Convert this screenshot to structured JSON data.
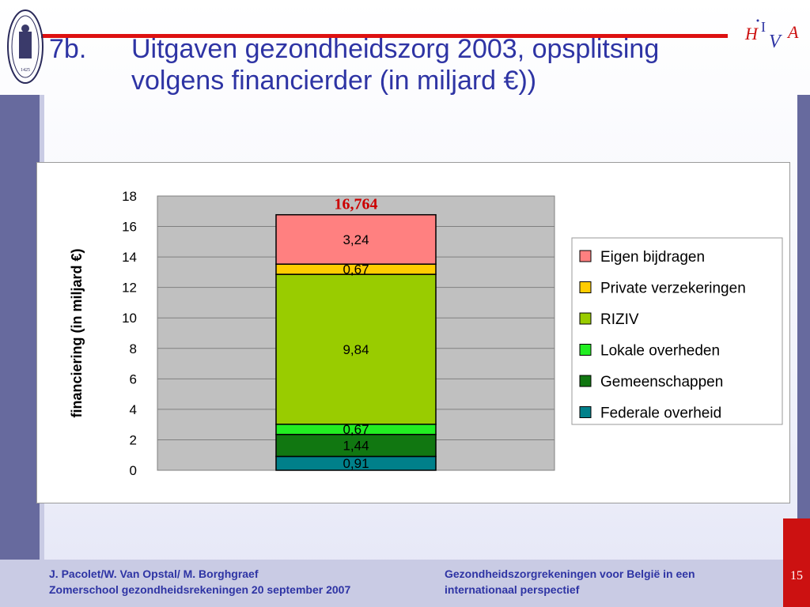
{
  "slide": {
    "number_label": "7b.",
    "title_line1": "Uitgaven gezondheidszorg 2003, opsplitsing",
    "title_line2": "volgens financierder (in miljard €))",
    "page_number": "15"
  },
  "footer": {
    "left_line1": "J. Pacolet/W. Van Opstal/ M. Borghgraef",
    "left_line2": "Zomerschool gezondheidsrekeningen 20 september 2007",
    "right_line1": "Gezondheidszorgrekeningen voor België in een",
    "right_line2": "internationaal perspectief"
  },
  "logos": {
    "seal_year": "1425",
    "hiva_text": "HIVA"
  },
  "colors": {
    "title": "#2e34a4",
    "accent_red": "#dd1111",
    "side_bars": "#676a9e",
    "total_label": "#cc0000"
  },
  "chart_data": {
    "type": "bar",
    "stacked": true,
    "ylabel": "financiering (in miljard €)",
    "ylim": [
      0,
      18
    ],
    "yticks": [
      0,
      2,
      4,
      6,
      8,
      10,
      12,
      14,
      16,
      18
    ],
    "grid": true,
    "legend_position": "right",
    "total_label": "16,764",
    "series": [
      {
        "name": "Federale overheid",
        "value": 0.91,
        "label": "0,91",
        "color": "#00808a"
      },
      {
        "name": "Gemeenschappen",
        "value": 1.44,
        "label": "1,44",
        "color": "#117711"
      },
      {
        "name": "Lokale overheden",
        "value": 0.67,
        "label": "0,67",
        "color": "#22ee22"
      },
      {
        "name": "RIZIV",
        "value": 9.84,
        "label": "9,84",
        "color": "#99cc00"
      },
      {
        "name": "Private verzekeringen",
        "value": 0.67,
        "label": "0,67",
        "color": "#ffcc00"
      },
      {
        "name": "Eigen bijdragen",
        "value": 3.24,
        "label": "3,24",
        "color": "#ff8080"
      }
    ],
    "legend_order": [
      "Eigen bijdragen",
      "Private verzekeringen",
      "RIZIV",
      "Lokale overheden",
      "Gemeenschappen",
      "Federale overheid"
    ]
  }
}
